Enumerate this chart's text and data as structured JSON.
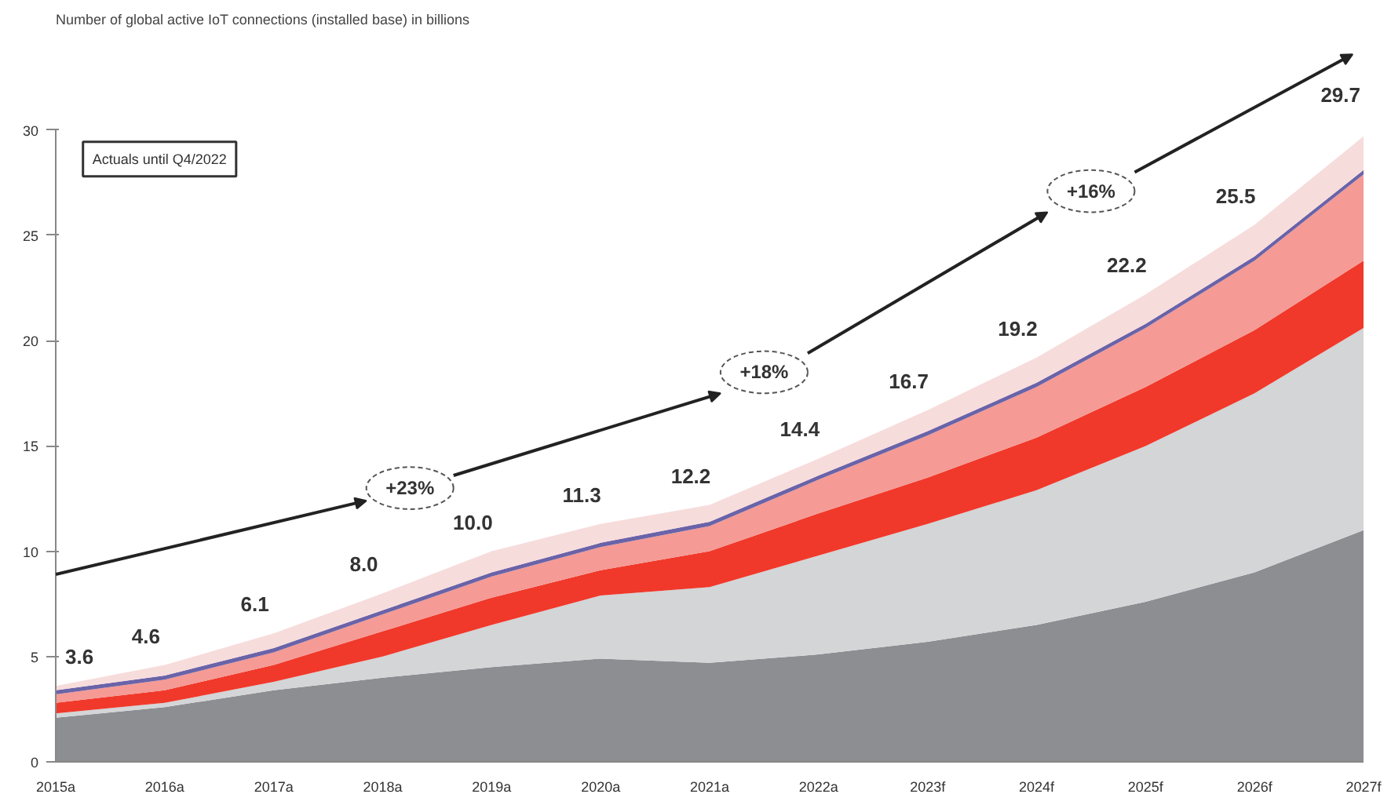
{
  "chart_data": {
    "type": "area",
    "stacked": true,
    "title": "Number of global active IoT connections (installed base) in billions",
    "categories": [
      "2015a",
      "2016a",
      "2017a",
      "2018a",
      "2019a",
      "2020a",
      "2021a",
      "2022a",
      "2023f",
      "2024f",
      "2025f",
      "2026f",
      "2027f"
    ],
    "series": [
      {
        "color": "#8c8e92",
        "values": [
          2.1,
          2.6,
          3.4,
          4.0,
          4.5,
          4.9,
          4.7,
          5.1,
          5.7,
          6.5,
          7.6,
          9.0,
          11.0
        ]
      },
      {
        "color": "#d3d5d7",
        "values": [
          0.2,
          0.2,
          0.4,
          1.0,
          2.0,
          3.0,
          3.6,
          4.7,
          5.6,
          6.4,
          7.4,
          8.5,
          9.6
        ]
      },
      {
        "color": "#f0392b",
        "values": [
          0.5,
          0.6,
          0.8,
          1.2,
          1.3,
          1.2,
          1.7,
          2.0,
          2.2,
          2.5,
          2.8,
          3.0,
          3.2
        ]
      },
      {
        "color": "#f59a95",
        "values": [
          0.4,
          0.5,
          0.6,
          0.8,
          1.0,
          1.1,
          1.2,
          1.6,
          2.0,
          2.4,
          2.8,
          3.3,
          4.1
        ]
      },
      {
        "color": "#6a63a8",
        "values": [
          0.2,
          0.2,
          0.2,
          0.2,
          0.2,
          0.2,
          0.2,
          0.2,
          0.2,
          0.2,
          0.2,
          0.2,
          0.2
        ]
      },
      {
        "color": "#f7dcdc",
        "values": [
          0.2,
          0.5,
          0.7,
          0.8,
          1.0,
          0.9,
          0.8,
          0.8,
          1.0,
          1.2,
          1.4,
          1.5,
          1.6
        ]
      }
    ],
    "totals": [
      "3.6",
      "4.6",
      "6.1",
      "8.0",
      "10.0",
      "11.3",
      "12.2",
      "14.4",
      "16.7",
      "19.2",
      "22.2",
      "25.5",
      "29.7"
    ],
    "ylim": [
      0,
      30
    ],
    "yticks": [
      0,
      5,
      10,
      15,
      20,
      25,
      30
    ],
    "annotations": [
      "Actuals until Q4/2022",
      "+23%",
      "+18%",
      "+16%"
    ]
  }
}
